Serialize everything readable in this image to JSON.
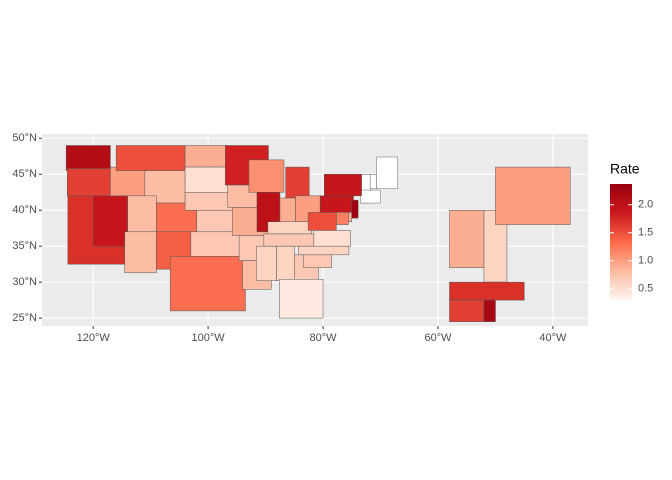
{
  "chart_data": {
    "type": "choropleth",
    "legend_title": "Rate",
    "values": [
      2.1,
      1.6,
      1.7,
      1.9,
      1.0,
      1.5,
      0.8,
      0.8,
      0.8,
      1.3,
      1.4,
      0.9,
      0.5,
      0.7,
      0.7,
      0.7,
      1.3,
      1.8,
      0.8,
      0.9,
      0.7,
      0.8,
      1.1,
      2.0,
      1.6,
      0.9,
      1.0,
      0.6,
      0.7,
      0.6,
      0.6,
      0.7,
      0.4,
      0.7,
      0.6,
      0.5,
      1.5,
      1.9,
      1.9,
      1.2,
      0.9,
      2.3,
      0.9,
      0.6,
      1.0,
      1.7,
      1.6,
      2.2
    ],
    "xlim": [
      -128.9,
      -33.9
    ],
    "ylim": [
      23.9,
      50.6
    ],
    "xticks": [
      {
        "value": -120,
        "label": "120°W"
      },
      {
        "value": -100,
        "label": "100°W"
      },
      {
        "value": -80,
        "label": "80°W"
      },
      {
        "value": -60,
        "label": "60°W"
      },
      {
        "value": -40,
        "label": "40°W"
      }
    ],
    "yticks": [
      {
        "value": 25,
        "label": "25°N"
      },
      {
        "value": 30,
        "label": "30°N"
      },
      {
        "value": 35,
        "label": "35°N"
      },
      {
        "value": 40,
        "label": "40°N"
      },
      {
        "value": 45,
        "label": "45°N"
      },
      {
        "value": 50,
        "label": "50°N"
      }
    ],
    "colorbar_lim": [
      0.3,
      2.37
    ],
    "colorbar_ticks": [
      0.5,
      {
        "value": 1,
        "label": "1.0"
      },
      1.5,
      {
        "value": 2,
        "label": "2.0"
      }
    ],
    "colors": [
      "#fff5f0",
      "#fcbba1",
      "#fb6a4a",
      "#cb181d",
      "#99000d"
    ],
    "grid": true
  }
}
